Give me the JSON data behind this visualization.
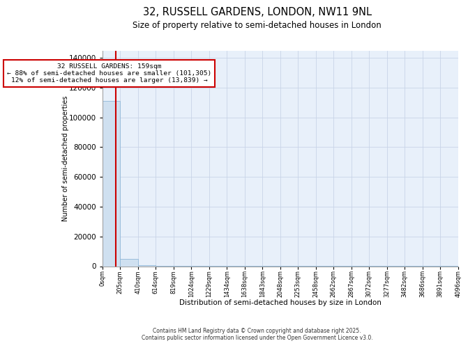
{
  "title1": "32, RUSSELL GARDENS, LONDON, NW11 9NL",
  "title2": "Size of property relative to semi-detached houses in London",
  "xlabel": "Distribution of semi-detached houses by size in London",
  "ylabel": "Number of semi-detached properties",
  "annotation_line1": "32 RUSSELL GARDENS: 159sqm",
  "annotation_line2": "← 88% of semi-detached houses are smaller (101,305)",
  "annotation_line3": "12% of semi-detached houses are larger (13,839) →",
  "footer1": "Contains HM Land Registry data © Crown copyright and database right 2025.",
  "footer2": "Contains public sector information licensed under the Open Government Licence v3.0.",
  "bin_edges": [
    0,
    205,
    410,
    614,
    819,
    1024,
    1229,
    1434,
    1638,
    1843,
    2048,
    2253,
    2458,
    2662,
    2867,
    3072,
    3277,
    3482,
    3686,
    3891,
    4096
  ],
  "bin_labels": [
    "0sqm",
    "205sqm",
    "410sqm",
    "614sqm",
    "819sqm",
    "1024sqm",
    "1229sqm",
    "1434sqm",
    "1638sqm",
    "1843sqm",
    "2048sqm",
    "2253sqm",
    "2458sqm",
    "2662sqm",
    "2867sqm",
    "3072sqm",
    "3277sqm",
    "3482sqm",
    "3686sqm",
    "3891sqm",
    "4096sqm"
  ],
  "counts": [
    111144,
    5000,
    700,
    200,
    80,
    40,
    20,
    12,
    8,
    5,
    4,
    3,
    2,
    2,
    1,
    1,
    1,
    1,
    1,
    1
  ],
  "bar_color": "#cfe0f0",
  "bar_edge_color": "#90b8d8",
  "property_line_x": 159,
  "property_line_color": "#cc0000",
  "background_color": "#e8f0fa",
  "grid_color": "#c8d4e8",
  "annotation_box_color": "#cc0000",
  "ylim": [
    0,
    145000
  ],
  "yticks": [
    0,
    20000,
    40000,
    60000,
    80000,
    100000,
    120000,
    140000
  ]
}
